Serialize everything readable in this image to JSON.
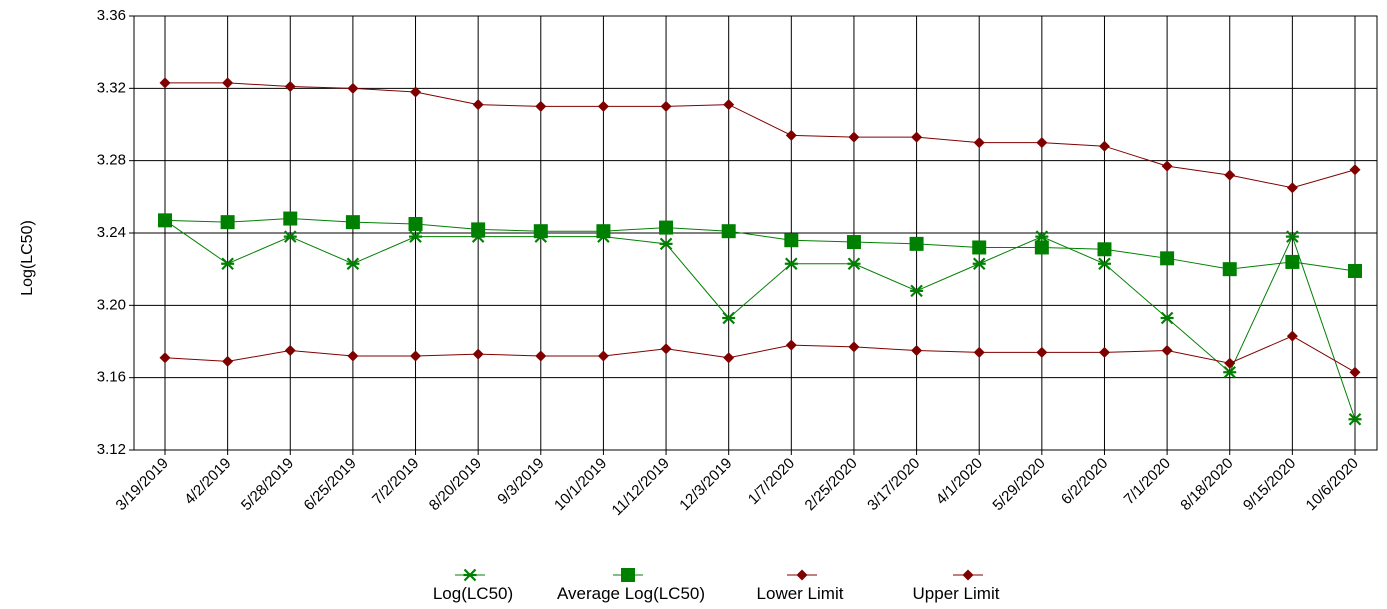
{
  "chart_data": {
    "type": "line",
    "title": "",
    "xlabel": "",
    "ylabel": "Log(LC50)",
    "ylim": [
      3.12,
      3.36
    ],
    "yticks": [
      3.12,
      3.16,
      3.2,
      3.24,
      3.28,
      3.32,
      3.36
    ],
    "ytick_labels": [
      "3.12",
      "3.16",
      "3.20",
      "3.24",
      "3.28",
      "3.32",
      "3.36"
    ],
    "grid": true,
    "legend_position": "bottom",
    "categories": [
      "3/19/2019",
      "4/2/2019",
      "5/28/2019",
      "6/25/2019",
      "7/2/2019",
      "8/20/2019",
      "9/3/2019",
      "10/1/2019",
      "11/12/2019",
      "12/3/2019",
      "1/7/2020",
      "2/25/2020",
      "3/17/2020",
      "4/1/2020",
      "5/29/2020",
      "6/2/2020",
      "7/1/2020",
      "8/18/2020",
      "9/15/2020",
      "10/6/2020"
    ],
    "series": [
      {
        "name": "Log(LC50)",
        "color": "#008000",
        "marker": "star",
        "values": [
          3.247,
          3.223,
          3.238,
          3.223,
          3.238,
          3.238,
          3.238,
          3.238,
          3.234,
          3.193,
          3.223,
          3.223,
          3.208,
          3.223,
          3.238,
          3.223,
          3.193,
          3.163,
          3.238,
          3.137
        ]
      },
      {
        "name": "Average Log(LC50)",
        "color": "#008000",
        "marker": "square",
        "values": [
          3.247,
          3.246,
          3.248,
          3.246,
          3.245,
          3.242,
          3.241,
          3.241,
          3.243,
          3.241,
          3.236,
          3.235,
          3.234,
          3.232,
          3.232,
          3.231,
          3.226,
          3.22,
          3.224,
          3.219
        ]
      },
      {
        "name": "Lower Limit",
        "color": "#800000",
        "marker": "diamond",
        "values": [
          3.171,
          3.169,
          3.175,
          3.172,
          3.172,
          3.173,
          3.172,
          3.172,
          3.176,
          3.171,
          3.178,
          3.177,
          3.175,
          3.174,
          3.174,
          3.174,
          3.175,
          3.168,
          3.183,
          3.163
        ]
      },
      {
        "name": "Upper Limit",
        "color": "#800000",
        "marker": "diamond",
        "values": [
          3.323,
          3.323,
          3.321,
          3.32,
          3.318,
          3.311,
          3.31,
          3.31,
          3.31,
          3.311,
          3.294,
          3.293,
          3.293,
          3.29,
          3.29,
          3.288,
          3.277,
          3.272,
          3.265,
          3.275
        ]
      }
    ]
  }
}
